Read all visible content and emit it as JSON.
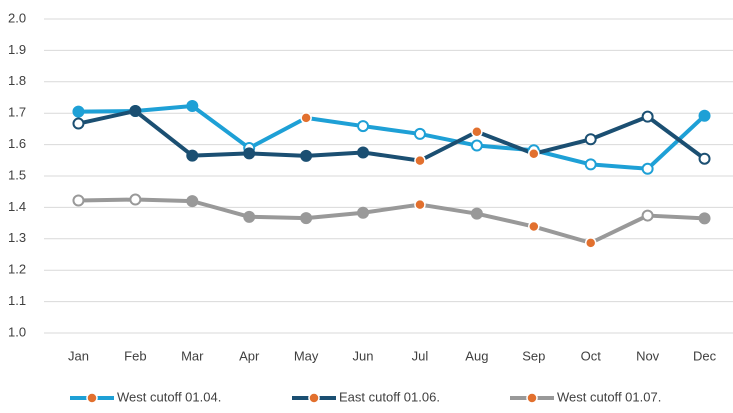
{
  "chart_data": {
    "type": "line",
    "categories": [
      "Jan",
      "Feb",
      "Mar",
      "Apr",
      "May",
      "Jun",
      "Jul",
      "Aug",
      "Sep",
      "Oct",
      "Nov",
      "Dec"
    ],
    "series": [
      {
        "name": "West cutoff 01.04.",
        "color": "#1ea0d6",
        "values": [
          1.705,
          1.707,
          1.723,
          1.589,
          1.685,
          1.659,
          1.634,
          1.597,
          1.582,
          1.537,
          1.523,
          1.692
        ],
        "markers": [
          "filled",
          "hollow",
          "filled",
          "hollow",
          "accent",
          "hollow",
          "hollow",
          "hollow",
          "hollow",
          "hollow",
          "hollow",
          "filled"
        ]
      },
      {
        "name": "East cutoff 01.06.",
        "color": "#1b4f72",
        "values": [
          1.667,
          1.707,
          1.565,
          1.572,
          1.564,
          1.575,
          1.549,
          1.641,
          1.571,
          1.617,
          1.689,
          1.555
        ],
        "markers": [
          "hollow",
          "filled",
          "filled",
          "filled",
          "filled",
          "filled",
          "accent",
          "accent",
          "accent",
          "hollow",
          "hollow",
          "hollow"
        ]
      },
      {
        "name": "West cutoff 01.07.",
        "color": "#999999",
        "values": [
          1.422,
          1.425,
          1.42,
          1.37,
          1.366,
          1.383,
          1.409,
          1.38,
          1.339,
          1.287,
          1.374,
          1.365
        ],
        "markers": [
          "hollow",
          "hollow",
          "filled",
          "filled",
          "filled",
          "filled",
          "accent",
          "filled",
          "accent",
          "accent",
          "hollow",
          "filled"
        ]
      }
    ],
    "marker_accent": "#e2702e",
    "ylim": [
      1.0,
      2.0
    ],
    "yticks": [
      {
        "value": 1.0,
        "label": "1.0"
      },
      1.1,
      1.2,
      1.3,
      1.4,
      1.5,
      1.6,
      1.7,
      1.8,
      1.9,
      {
        "value": 2.0,
        "label": "2.0"
      }
    ],
    "grid": true,
    "legend": "bottom"
  }
}
